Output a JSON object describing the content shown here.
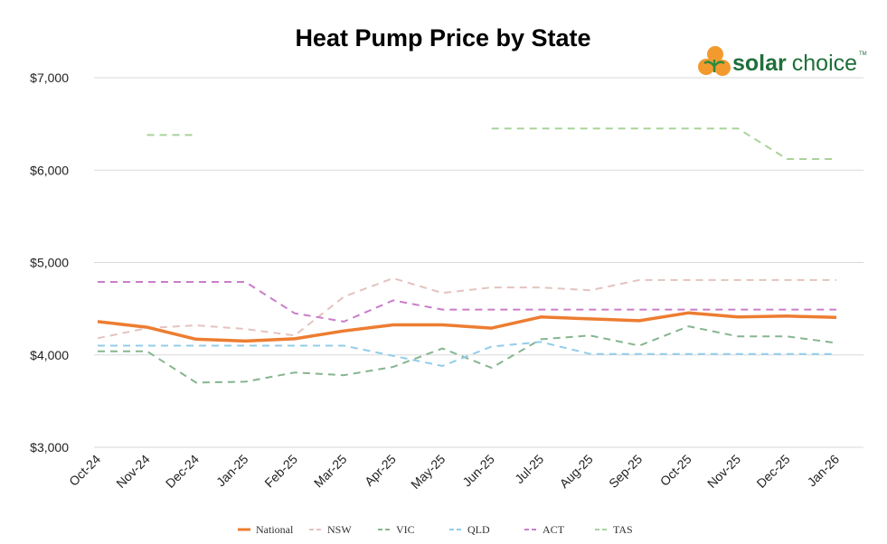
{
  "chart_data": {
    "type": "line",
    "title": "Heat Pump Price by State",
    "xlabel": "",
    "ylabel": "",
    "categories": [
      "Oct-24",
      "Nov-24",
      "Dec-24",
      "Jan-25",
      "Feb-25",
      "Mar-25",
      "Apr-25",
      "May-25",
      "Jun-25",
      "Jul-25",
      "Aug-25",
      "Sep-25",
      "Oct-25",
      "Nov-25",
      "Dec-25",
      "Jan-26"
    ],
    "ylim": [
      3000,
      7000
    ],
    "y_ticks": [
      {
        "value": 7000,
        "label": "$7,000"
      },
      {
        "value": 6000,
        "label": "$6,000"
      },
      {
        "value": 5000,
        "label": "$5,000"
      },
      {
        "value": 4000,
        "label": "$4,000"
      },
      {
        "value": 3000,
        "label": "$3,000"
      }
    ],
    "grid": "horizontal",
    "legend_position": "bottom",
    "series": [
      {
        "name": "National",
        "style": "solid",
        "color": "#ED7D31",
        "values": [
          4360,
          4300,
          4170,
          4150,
          4175,
          4260,
          4325,
          4325,
          4290,
          4410,
          4390,
          4370,
          4455,
          4410,
          4420,
          4405
        ]
      },
      {
        "name": "NSW",
        "style": "dashed",
        "color": "#E3C3BF",
        "values": [
          4180,
          4290,
          4320,
          4280,
          4210,
          4630,
          4830,
          4670,
          4730,
          4730,
          4700,
          4810,
          4810,
          4810,
          4810,
          4810
        ]
      },
      {
        "name": "VIC",
        "style": "dashed",
        "color": "#86B58F",
        "values": [
          4040,
          4040,
          3700,
          3710,
          3810,
          3780,
          3870,
          4070,
          3860,
          4170,
          4210,
          4100,
          4310,
          4200,
          4200,
          4130
        ]
      },
      {
        "name": "QLD",
        "style": "dashed",
        "color": "#93CCEA",
        "values": [
          4100,
          4100,
          4100,
          4100,
          4100,
          4100,
          3990,
          3880,
          4090,
          4140,
          4010,
          4010,
          4010,
          4010,
          4010,
          4010
        ]
      },
      {
        "name": "ACT",
        "style": "dashed",
        "color": "#C97DC9",
        "values": [
          4790,
          4790,
          4790,
          4790,
          4450,
          4360,
          4590,
          4490,
          4490,
          4490,
          4490,
          4490,
          4490,
          4490,
          4490,
          4490
        ]
      },
      {
        "name": "TAS",
        "style": "dashed",
        "color": "#A9D39A",
        "values": [
          null,
          6380,
          6380,
          null,
          null,
          null,
          null,
          null,
          6450,
          6450,
          6450,
          6450,
          6450,
          6450,
          6120,
          6120
        ]
      }
    ]
  },
  "logo": {
    "word_bold": "solar",
    "word_regular": "choice",
    "tm": "TM",
    "colors": {
      "sun": "#F29A2E",
      "leaf": "#2E8B3E",
      "text": "#1f6f3a"
    }
  }
}
